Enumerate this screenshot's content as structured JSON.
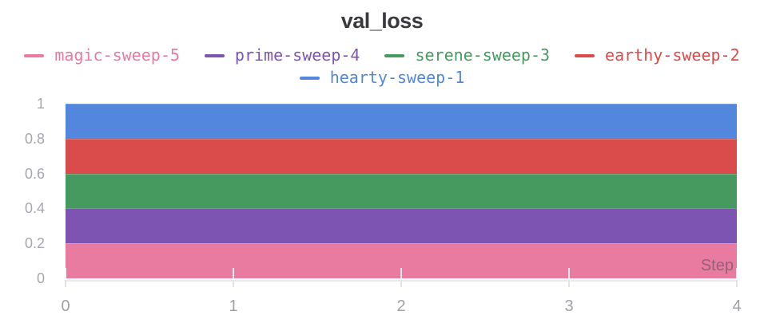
{
  "chart_data": {
    "type": "area",
    "title": "val_loss",
    "xlabel": "Step",
    "ylabel": "",
    "x": [
      0,
      1,
      2,
      3,
      4
    ],
    "xlim": [
      0,
      4
    ],
    "ylim": [
      0,
      1
    ],
    "grid": false,
    "legend_position": "top",
    "series": [
      {
        "name": "hearty-sweep-1",
        "color": "#5387DD",
        "values": [
          1.0,
          1.0,
          1.0,
          1.0,
          1.0
        ]
      },
      {
        "name": "earthy-sweep-2",
        "color": "#DA4C4C",
        "values": [
          0.8,
          0.8,
          0.8,
          0.8,
          0.8
        ]
      },
      {
        "name": "serene-sweep-3",
        "color": "#479A5F",
        "values": [
          0.6,
          0.6,
          0.6,
          0.6,
          0.6
        ]
      },
      {
        "name": "prime-sweep-4",
        "color": "#7D54B2",
        "values": [
          0.4,
          0.4,
          0.4,
          0.4,
          0.4
        ]
      },
      {
        "name": "magic-sweep-5",
        "color": "#E87B9F",
        "values": [
          0.2,
          0.2,
          0.2,
          0.2,
          0.2
        ]
      }
    ],
    "legend_rows": [
      [
        "magic-sweep-5",
        "prime-sweep-4",
        "serene-sweep-3",
        "earthy-sweep-2"
      ],
      [
        "hearty-sweep-1"
      ]
    ],
    "yticks": [
      {
        "v": 1.0,
        "label": "1"
      },
      {
        "v": 0.8,
        "label": "0.8"
      },
      {
        "v": 0.6,
        "label": "0.6"
      },
      {
        "v": 0.4,
        "label": "0.4"
      },
      {
        "v": 0.2,
        "label": "0.2"
      },
      {
        "v": 0.0,
        "label": "0"
      }
    ],
    "xticks": [
      {
        "v": 0,
        "label": "0"
      },
      {
        "v": 1,
        "label": "1"
      },
      {
        "v": 2,
        "label": "2"
      },
      {
        "v": 3,
        "label": "3"
      },
      {
        "v": 4,
        "label": "4"
      }
    ]
  }
}
